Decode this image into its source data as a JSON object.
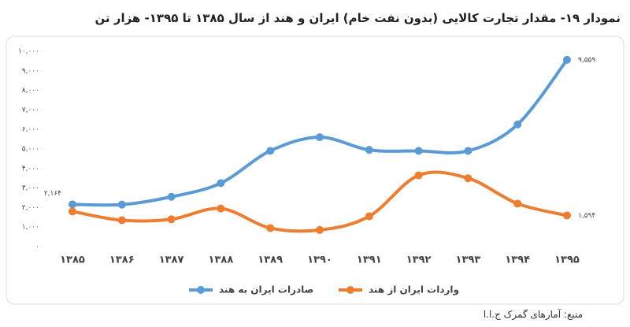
{
  "chart_data": {
    "type": "line",
    "title": "نمودار ۱۹- مقدار تجارت کالایی (بدون نفت خام) ایران و هند از سال ۱۳۸۵ تا ۱۳۹۵- هزار تن",
    "categories": [
      "۱۳۸۵",
      "۱۳۸۶",
      "۱۳۸۷",
      "۱۳۸۸",
      "۱۳۸۹",
      "۱۳۹۰",
      "۱۳۹۱",
      "۱۳۹۲",
      "۱۳۹۳",
      "۱۳۹۴",
      "۱۳۹۵"
    ],
    "series": [
      {
        "name": "صادرات ایران به هند",
        "color": "#5b9bd5",
        "values": [
          2164,
          2150,
          2550,
          3250,
          4900,
          5600,
          4950,
          4900,
          4900,
          6250,
          9559
        ],
        "value_labels": [
          "۲,۱۶۴",
          null,
          null,
          null,
          null,
          null,
          null,
          null,
          null,
          null,
          "۹,۵۵۹"
        ]
      },
      {
        "name": "واردات ایران از هند",
        "color": "#ed7d31",
        "values": [
          1800,
          1350,
          1400,
          1950,
          950,
          850,
          1550,
          3650,
          3500,
          2200,
          1594
        ],
        "value_labels": [
          null,
          null,
          null,
          null,
          null,
          null,
          null,
          null,
          null,
          null,
          "۱,۵۹۴"
        ]
      }
    ],
    "ylim": [
      0,
      10000
    ],
    "yticks": [
      {
        "value": 0,
        "label": "۰"
      },
      {
        "value": 1000,
        "label": "۱,۰۰۰"
      },
      {
        "value": 2000,
        "label": "۲,۰۰۰"
      },
      {
        "value": 3000,
        "label": "۳,۰۰۰"
      },
      {
        "value": 4000,
        "label": "۴,۰۰۰"
      },
      {
        "value": 5000,
        "label": "۵,۰۰۰"
      },
      {
        "value": 6000,
        "label": "۶,۰۰۰"
      },
      {
        "value": 7000,
        "label": "۷,۰۰۰"
      },
      {
        "value": 8000,
        "label": "۸,۰۰۰"
      },
      {
        "value": 9000,
        "label": "۹,۰۰۰"
      },
      {
        "value": 10000,
        "label": "۱۰,۰۰۰"
      }
    ],
    "smooth": true,
    "source": "منبع: آمارهای گمرک ج.ا.ا"
  }
}
